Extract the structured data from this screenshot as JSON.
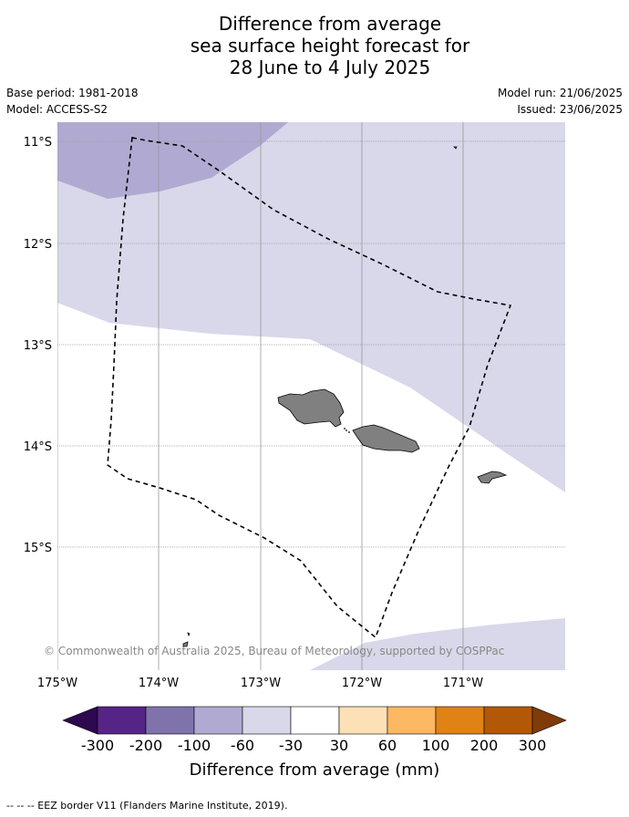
{
  "title": {
    "line1": "Difference from average",
    "line2": "sea surface height forecast for",
    "line3": "28 June to 4 July 2025"
  },
  "meta": {
    "base_period": "Base period: 1981-2018",
    "model": "Model: ACCESS-S2",
    "model_run": "Model run: 21/06/2025",
    "issued": "Issued: 23/06/2025"
  },
  "map": {
    "lon_range": [
      -175,
      -170
    ],
    "lat_range": [
      -16.2,
      -10.8
    ],
    "lat_ticks": [
      "11°S",
      "12°S",
      "13°S",
      "14°S",
      "15°S"
    ],
    "lon_ticks": [
      "175°W",
      "174°W",
      "173°W",
      "172°W",
      "171°W"
    ],
    "copyright": "© Commonwealth of Australia 2025, Bureau of Meteorology, supported by COSPPac",
    "colors": {
      "band_-100_-60": "#b0aad2",
      "band_-60_-30": "#d8d8ea",
      "land": "#808080",
      "grid": "#999999"
    }
  },
  "colorbar": {
    "label": "Difference from average (mm)",
    "ticks": [
      "-300",
      "-200",
      "-100",
      "-60",
      "-30",
      "30",
      "60",
      "100",
      "200",
      "300"
    ],
    "colors": [
      "#2e0850",
      "#562487",
      "#8073ac",
      "#b0aad2",
      "#d8d8ea",
      "#ffffff",
      "#fee0b6",
      "#fdb863",
      "#e08214",
      "#b35806",
      "#7f3b08"
    ]
  },
  "footer": "--  --  -- EEZ border V11 (Flanders Marine Institute, 2019)."
}
